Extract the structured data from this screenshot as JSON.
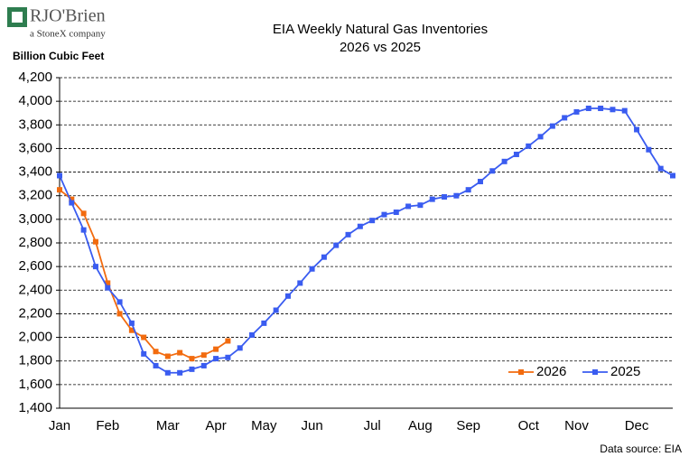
{
  "logo": {
    "name": "RJO'Brien",
    "tagline": "a StoneX company"
  },
  "chart_data": {
    "type": "line",
    "title": "EIA Weekly Natural Gas Inventories",
    "subtitle": "2026 vs 2025",
    "y_label": "Billion Cubic Feet",
    "source": "Data source: EIA",
    "categories": [
      "Jan",
      null,
      null,
      null,
      "Feb",
      null,
      null,
      null,
      null,
      "Mar",
      null,
      null,
      null,
      "Apr",
      null,
      null,
      null,
      "May",
      null,
      null,
      null,
      "Jun",
      null,
      null,
      null,
      null,
      "Jul",
      null,
      null,
      null,
      "Aug",
      null,
      null,
      null,
      "Sep",
      null,
      null,
      null,
      null,
      "Oct",
      null,
      null,
      null,
      "Nov",
      null,
      null,
      null,
      null,
      "Dec",
      null,
      null,
      null
    ],
    "series": [
      {
        "name": "2026",
        "color": "#f26b0f",
        "values": [
          3250,
          3170,
          3050,
          2810,
          2460,
          2200,
          2060,
          2000,
          1880,
          1840,
          1870,
          1820,
          1850,
          1900,
          1970,
          null,
          null,
          null,
          null,
          null,
          null,
          null,
          null,
          null,
          null,
          null,
          null,
          null,
          null,
          null,
          null,
          null,
          null,
          null,
          null,
          null,
          null,
          null,
          null,
          null,
          null,
          null,
          null,
          null,
          null,
          null,
          null,
          null,
          null,
          null,
          null,
          null
        ]
      },
      {
        "name": "2025",
        "color": "#3a5cf0",
        "values": [
          3370,
          3140,
          2910,
          2600,
          2420,
          2300,
          2120,
          1860,
          1760,
          1700,
          1700,
          1730,
          1760,
          1820,
          1830,
          1910,
          2020,
          2120,
          2230,
          2350,
          2460,
          2580,
          2680,
          2780,
          2870,
          2940,
          2990,
          3040,
          3060,
          3110,
          3120,
          3170,
          3190,
          3200,
          3250,
          3320,
          3410,
          3490,
          3550,
          3620,
          3700,
          3790,
          3860,
          3910,
          3940,
          3940,
          3930,
          3920,
          3760,
          3590,
          3430,
          3370
        ]
      }
    ],
    "ylim": [
      1400,
      4200
    ],
    "yticks": [
      {
        "value": 1400,
        "label": "1,400"
      },
      {
        "value": 1600,
        "label": "1,600"
      },
      {
        "value": 1800,
        "label": "1,800"
      },
      {
        "value": 2000,
        "label": "2,000"
      },
      {
        "value": 2200,
        "label": "2,200"
      },
      {
        "value": 2400,
        "label": "2,400"
      },
      {
        "value": 2600,
        "label": "2,600"
      },
      {
        "value": 2800,
        "label": "2,800"
      },
      {
        "value": 3000,
        "label": "3,000"
      },
      {
        "value": 3200,
        "label": "3,200"
      },
      {
        "value": 3400,
        "label": "3,400"
      },
      {
        "value": 3600,
        "label": "3,600"
      },
      {
        "value": 3800,
        "label": "3,800"
      },
      {
        "value": 4000,
        "label": "4,000"
      },
      {
        "value": 4200,
        "label": "4,200"
      }
    ],
    "grid": true,
    "legend": "bottom-right"
  }
}
